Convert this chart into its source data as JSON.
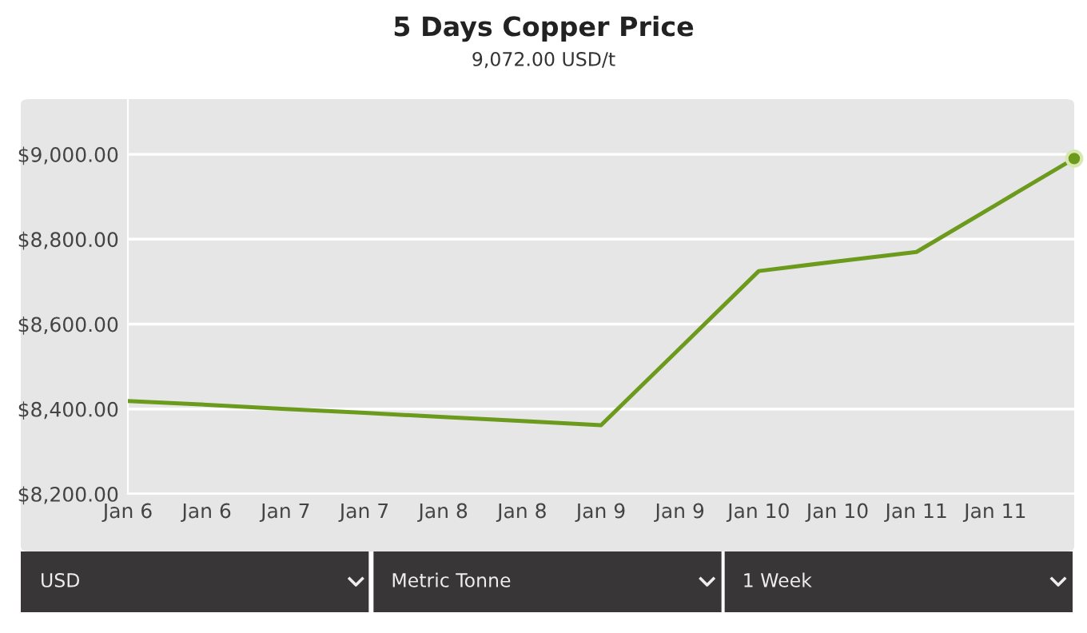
{
  "chart_data": {
    "type": "line",
    "title": "5 Days Copper Price",
    "subtitle": "9,072.00 USD/t",
    "categories": [
      "Jan 6",
      "Jan 6",
      "Jan 7",
      "Jan 7",
      "Jan 8",
      "Jan 8",
      "Jan 9",
      "Jan 9",
      "Jan 10",
      "Jan 10",
      "Jan 11",
      "Jan 11",
      null
    ],
    "series": [
      {
        "color": "#6b9a1c",
        "values": [
          8419,
          8410,
          8400,
          8391,
          8381,
          8372,
          8362,
          8543,
          8725,
          8748,
          8770,
          8880,
          8990
        ]
      }
    ],
    "ylim": [
      8200,
      9130
    ],
    "yticks": [
      {
        "value": 8200,
        "label": "$8,200.00"
      },
      {
        "value": 8400,
        "label": "$8,400.00"
      },
      {
        "value": 8600,
        "label": "$8,600.00"
      },
      {
        "value": 8800,
        "label": "$8,800.00"
      },
      {
        "value": 9000,
        "label": "$9,000.00"
      }
    ],
    "grid": "y",
    "line_style": "solid",
    "annotations": [
      "USD",
      "Metric Tonne",
      "1 Week"
    ]
  }
}
